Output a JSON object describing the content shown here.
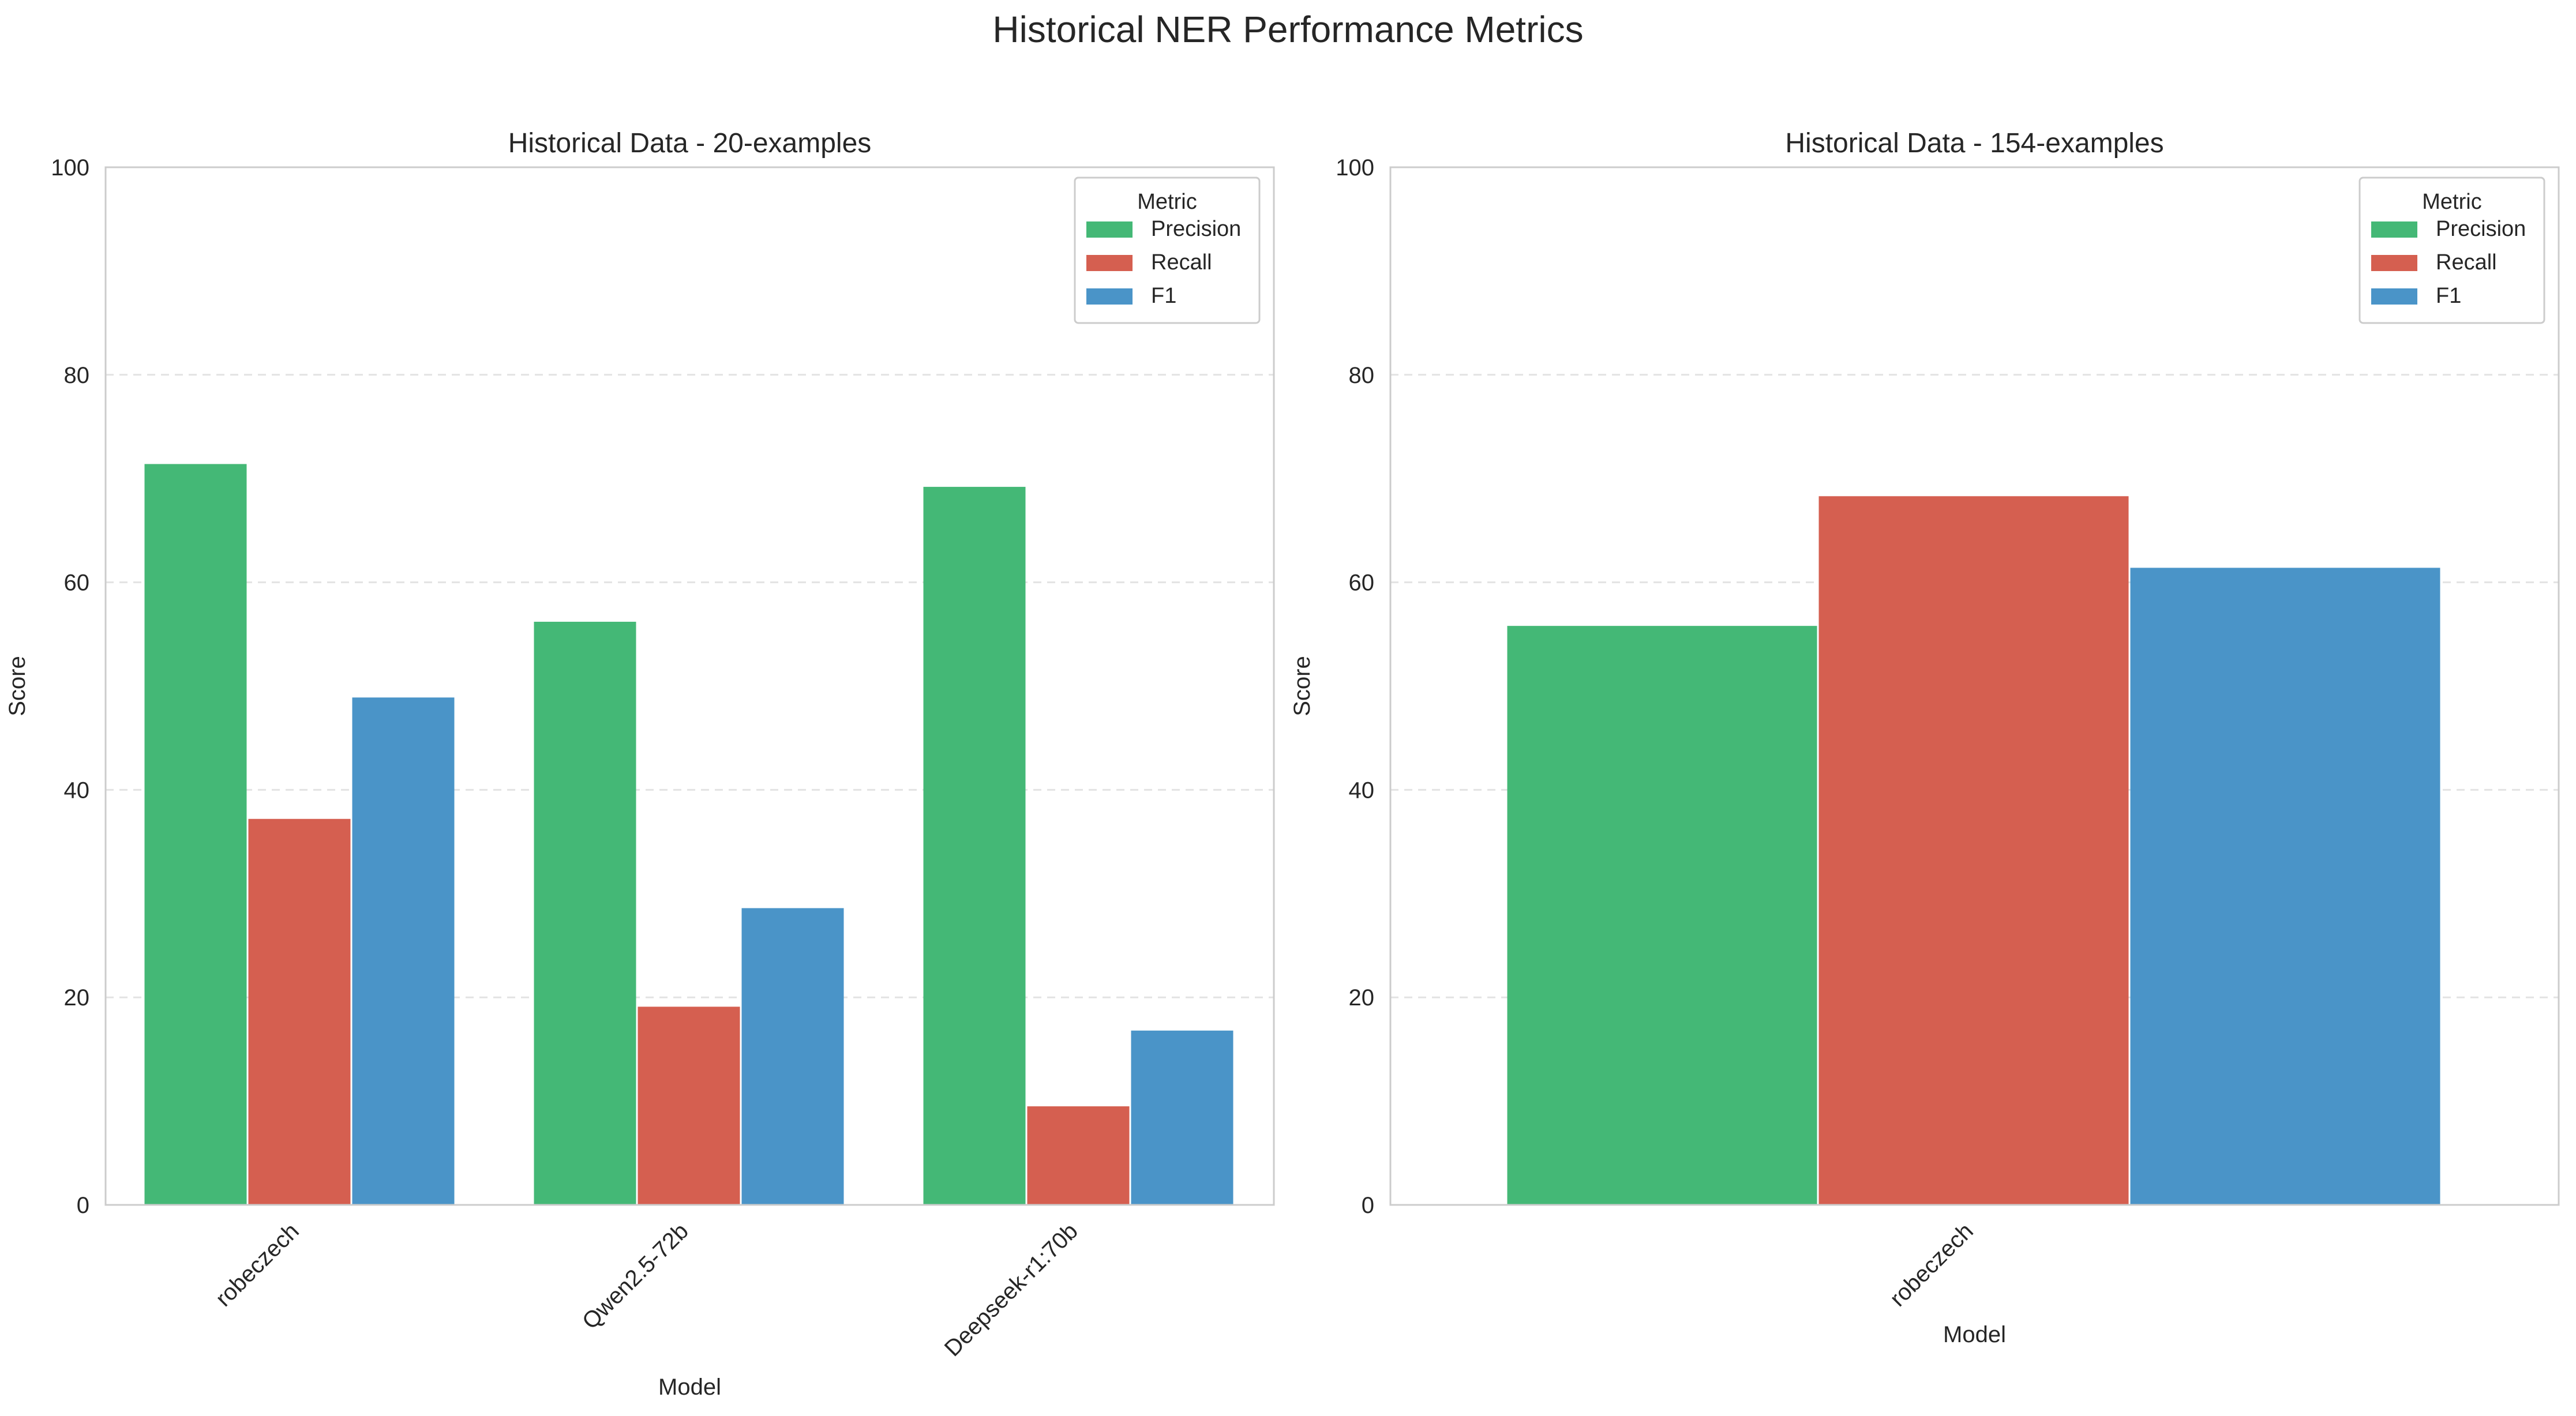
{
  "figure": {
    "title": "Historical NER Performance Metrics"
  },
  "colors": {
    "Precision": "#44b876",
    "Recall": "#d55f50",
    "F1": "#4a94c8",
    "grid": "#e3e3e3",
    "axis_frame": "#cccccc",
    "text": "#262626"
  },
  "chart_data": [
    {
      "type": "bar",
      "title": "Historical Data - 20-examples",
      "xlabel": "Model",
      "ylabel": "Score",
      "ylim": [
        0,
        100
      ],
      "yticks": [
        0,
        20,
        40,
        60,
        80,
        100
      ],
      "grid": "horizontal dashed",
      "legend": {
        "title": "Metric",
        "placement": "top-right"
      },
      "categories": [
        "robeczech",
        "Qwen2.5-72b",
        "Deepseek-r1:70b"
      ],
      "series": [
        {
          "name": "Precision",
          "values": [
            71.4,
            56.2,
            69.2
          ]
        },
        {
          "name": "Recall",
          "values": [
            37.2,
            19.1,
            9.5
          ]
        },
        {
          "name": "F1",
          "values": [
            48.9,
            28.6,
            16.8
          ]
        }
      ]
    },
    {
      "type": "bar",
      "title": "Historical Data - 154-examples",
      "xlabel": "Model",
      "ylabel": "Score",
      "ylim": [
        0,
        100
      ],
      "yticks": [
        0,
        20,
        40,
        60,
        80,
        100
      ],
      "grid": "horizontal dashed",
      "legend": {
        "title": "Metric",
        "placement": "top-right"
      },
      "categories": [
        "robeczech"
      ],
      "series": [
        {
          "name": "Precision",
          "values": [
            55.8
          ]
        },
        {
          "name": "Recall",
          "values": [
            68.3
          ]
        },
        {
          "name": "F1",
          "values": [
            61.4
          ]
        }
      ]
    }
  ]
}
